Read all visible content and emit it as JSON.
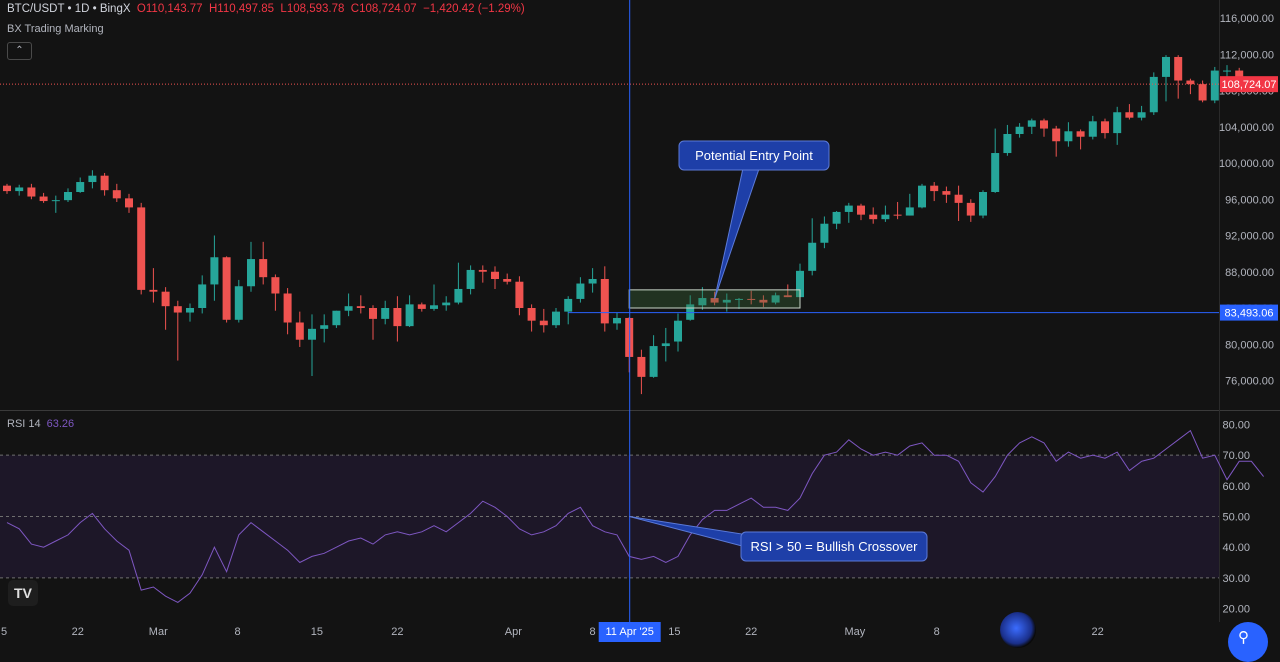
{
  "legend": {
    "symbol": "BTC/USDT • 1D • BingX",
    "o_key": "O",
    "o_val": "110,143.77",
    "h_key": "H",
    "h_val": "110,497.85",
    "l_key": "L",
    "l_val": "108,593.78",
    "c_key": "C",
    "c_val": "108,724.07",
    "change": "−1,420.42 (−1.29%)"
  },
  "indicator_name": "BX Trading Marking",
  "collapse_icon": "chevron-up-icon",
  "rsi_legend": {
    "name": "RSI 14",
    "value": "63.26"
  },
  "logo": "TV",
  "colors": {
    "up": "#26a69a",
    "down": "#ef5350",
    "rsi": "#7e57c2",
    "accent": "#2962ff"
  },
  "chart_data": [
    {
      "type": "candlestick",
      "title": "BTC/USDT • 1D • BingX",
      "price_axis": {
        "ticks": [
          "116,000.00",
          "112,000.00",
          "108,000.00",
          "104,000.00",
          "100,000.00",
          "96,000.00",
          "92,000.00",
          "88,000.00",
          "84,000.00",
          "80,000.00",
          "76,000.00"
        ],
        "range": [
          73000,
          117500
        ]
      },
      "x_axis_ticks": [
        "5",
        "22",
        "Mar",
        "8",
        "15",
        "22",
        "Apr",
        "8",
        "15",
        "22",
        "May",
        "8",
        "15",
        "22"
      ],
      "current_price_label": "108,724.07",
      "crosshair_price_label": "83,493.06",
      "crosshair_date_label": "11 Apr '25",
      "annotation": "Potential Entry Point",
      "ohlc": [
        [
          97500,
          97700,
          96600,
          96900
        ],
        [
          96900,
          97600,
          96400,
          97300
        ],
        [
          97300,
          97700,
          96000,
          96300
        ],
        [
          96300,
          96700,
          95600,
          95800
        ],
        [
          95800,
          96400,
          94500,
          95900
        ],
        [
          95900,
          97200,
          95700,
          96800
        ],
        [
          96800,
          98400,
          96700,
          97900
        ],
        [
          97900,
          99200,
          97200,
          98600
        ],
        [
          98600,
          98900,
          96400,
          97000
        ],
        [
          97000,
          97700,
          95700,
          96100
        ],
        [
          96100,
          96600,
          94500,
          95100
        ],
        [
          95100,
          95600,
          85500,
          86000
        ],
        [
          86000,
          88400,
          84600,
          85800
        ],
        [
          85800,
          86300,
          81600,
          84200
        ],
        [
          84200,
          84800,
          78200,
          83500
        ],
        [
          83500,
          84500,
          82500,
          84000
        ],
        [
          84000,
          87600,
          83400,
          86600
        ],
        [
          86600,
          92000,
          84800,
          89600
        ],
        [
          89600,
          89700,
          82400,
          82700
        ],
        [
          82700,
          87100,
          82400,
          86400
        ],
        [
          86400,
          91300,
          85800,
          89400
        ],
        [
          89400,
          91300,
          86600,
          87400
        ],
        [
          87400,
          87700,
          83700,
          85600
        ],
        [
          85600,
          86200,
          81100,
          82400
        ],
        [
          82400,
          83600,
          79700,
          80500
        ],
        [
          80500,
          83300,
          76500,
          81700
        ],
        [
          81700,
          83300,
          80200,
          82100
        ],
        [
          82100,
          83700,
          81800,
          83700
        ],
        [
          83700,
          85600,
          83100,
          84200
        ],
        [
          84200,
          85400,
          83400,
          84000
        ],
        [
          84000,
          84300,
          80500,
          82800
        ],
        [
          82800,
          84800,
          82200,
          84000
        ],
        [
          84000,
          85300,
          80300,
          82000
        ],
        [
          82000,
          85400,
          81900,
          84400
        ],
        [
          84400,
          84600,
          83600,
          83900
        ],
        [
          83900,
          86600,
          83700,
          84300
        ],
        [
          84300,
          85300,
          83700,
          84600
        ],
        [
          84600,
          89000,
          84400,
          86100
        ],
        [
          86100,
          88700,
          85500,
          88200
        ],
        [
          88200,
          88700,
          86800,
          88000
        ],
        [
          88000,
          88600,
          86100,
          87200
        ],
        [
          87200,
          87800,
          86600,
          86900
        ],
        [
          86900,
          87500,
          83200,
          84000
        ],
        [
          84000,
          84400,
          81400,
          82600
        ],
        [
          82600,
          83900,
          81300,
          82100
        ],
        [
          82100,
          84000,
          81800,
          83600
        ],
        [
          83600,
          85300,
          82200,
          85000
        ],
        [
          85000,
          87400,
          84600,
          86700
        ],
        [
          86700,
          88400,
          85700,
          87200
        ],
        [
          87200,
          88600,
          81400,
          82300
        ],
        [
          82300,
          83500,
          81600,
          82900
        ],
        [
          82900,
          83000,
          76900,
          78600
        ],
        [
          78600,
          79400,
          74500,
          76400
        ],
        [
          76400,
          81000,
          76300,
          79800
        ],
        [
          79800,
          81800,
          78100,
          80100
        ],
        [
          80300,
          83400,
          79200,
          82600
        ],
        [
          82700,
          85400,
          82600,
          84400
        ],
        [
          84300,
          86300,
          83800,
          85100
        ],
        [
          85100,
          85800,
          84300,
          84600
        ],
        [
          84600,
          85600,
          83600,
          84900
        ],
        [
          84900,
          85100,
          83900,
          85000
        ],
        [
          85000,
          85900,
          84400,
          84900
        ],
        [
          84900,
          85400,
          84100,
          84600
        ],
        [
          84600,
          85700,
          84400,
          85400
        ],
        [
          85400,
          86600,
          85200,
          85200
        ],
        [
          85200,
          88900,
          85000,
          88100
        ],
        [
          88100,
          93900,
          87600,
          91200
        ],
        [
          91200,
          94100,
          90600,
          93300
        ],
        [
          93300,
          94700,
          92700,
          94600
        ],
        [
          94600,
          95600,
          93400,
          95300
        ],
        [
          95300,
          95500,
          93700,
          94300
        ],
        [
          94300,
          95100,
          93300,
          93800
        ],
        [
          93800,
          95300,
          93500,
          94300
        ],
        [
          94300,
          95700,
          93800,
          94200
        ],
        [
          94200,
          96600,
          94200,
          95100
        ],
        [
          95100,
          97700,
          95000,
          97500
        ],
        [
          97500,
          97900,
          95800,
          96900
        ],
        [
          96900,
          97400,
          95600,
          96500
        ],
        [
          96500,
          97500,
          93600,
          95600
        ],
        [
          95600,
          96000,
          93500,
          94200
        ],
        [
          94200,
          97000,
          93900,
          96800
        ],
        [
          96800,
          103800,
          96700,
          101100
        ],
        [
          101100,
          104200,
          100800,
          103200
        ],
        [
          103200,
          104400,
          102800,
          104000
        ],
        [
          104000,
          104900,
          103200,
          104700
        ],
        [
          104700,
          104900,
          102900,
          103800
        ],
        [
          103800,
          104100,
          100700,
          102400
        ],
        [
          102400,
          104500,
          101800,
          103500
        ],
        [
          103500,
          103700,
          101500,
          102900
        ],
        [
          102900,
          105200,
          102600,
          104600
        ],
        [
          104600,
          104900,
          102700,
          103300
        ],
        [
          103300,
          106200,
          102000,
          105600
        ],
        [
          105600,
          106500,
          104800,
          105000
        ],
        [
          105000,
          106300,
          104700,
          105600
        ],
        [
          105600,
          110000,
          105300,
          109500
        ],
        [
          109500,
          111900,
          106800,
          111700
        ],
        [
          111700,
          111900,
          107100,
          109100
        ],
        [
          109100,
          109300,
          107600,
          108700
        ],
        [
          108700,
          109100,
          106700,
          106900
        ],
        [
          106900,
          110600,
          106600,
          110200
        ],
        [
          110200,
          110800,
          108500,
          110200
        ],
        [
          110200,
          110500,
          108600,
          108700
        ]
      ]
    },
    {
      "type": "line",
      "title": "RSI 14",
      "y_axis_ticks": [
        "80.00",
        "70.00",
        "60.00",
        "50.00",
        "40.00",
        "30.00",
        "20.00"
      ],
      "ylim": [
        18,
        82
      ],
      "bands": [
        30,
        50,
        70
      ],
      "annotation": "RSI > 50 = Bullish Crossover",
      "values": [
        48,
        46,
        41,
        40,
        42,
        44,
        48,
        51,
        46,
        42,
        39,
        26,
        27,
        24,
        22,
        25,
        31,
        40,
        32,
        44,
        48,
        45,
        42,
        39,
        35,
        37,
        38,
        40,
        42,
        43,
        41,
        44,
        45,
        44,
        45,
        47,
        45,
        48,
        51,
        55,
        53,
        50,
        46,
        44,
        45,
        47,
        51,
        53,
        47,
        45,
        44,
        37,
        36,
        37,
        35,
        37,
        44,
        49,
        52,
        52,
        54,
        56,
        53,
        53,
        52,
        56,
        64,
        70,
        71,
        75,
        72,
        70,
        71,
        70,
        73,
        74,
        70,
        70,
        68,
        61,
        58,
        63,
        70,
        74,
        76,
        74,
        68,
        71,
        69,
        70,
        69,
        71,
        65,
        68,
        69,
        72,
        75,
        78,
        69,
        70,
        62,
        68,
        68,
        63
      ]
    }
  ]
}
